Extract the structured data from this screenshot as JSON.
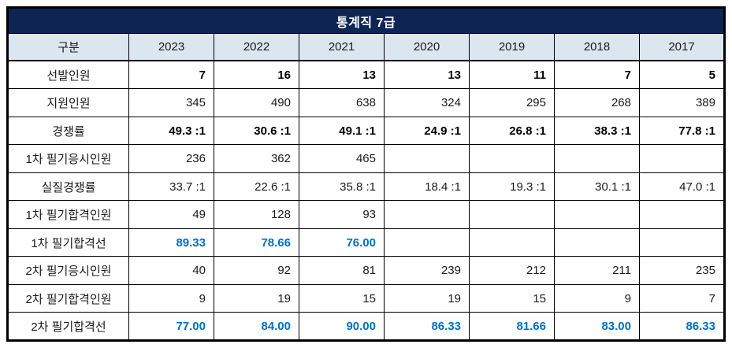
{
  "title": "통계직 7급",
  "columns": [
    "구분",
    "2023",
    "2022",
    "2021",
    "2020",
    "2019",
    "2018",
    "2017"
  ],
  "rows": [
    {
      "label": "선발인원",
      "style": "bold",
      "values": [
        "7",
        "16",
        "13",
        "13",
        "11",
        "7",
        "5"
      ]
    },
    {
      "label": "지원인원",
      "style": "normal",
      "values": [
        "345",
        "490",
        "638",
        "324",
        "295",
        "268",
        "389"
      ]
    },
    {
      "label": "경쟁률",
      "style": "bold",
      "values": [
        "49.3 :1",
        "30.6 :1",
        "49.1 :1",
        "24.9 :1",
        "26.8 :1",
        "38.3 :1",
        "77.8 :1"
      ]
    },
    {
      "label": "1차 필기응시인원",
      "style": "normal",
      "values": [
        "236",
        "362",
        "465",
        "",
        "",
        "",
        ""
      ]
    },
    {
      "label": "실질경쟁률",
      "style": "normal",
      "values": [
        "33.7 :1",
        "22.6 :1",
        "35.8 :1",
        "18.4 :1",
        "19.3 :1",
        "30.1 :1",
        "47.0 :1"
      ]
    },
    {
      "label": "1차 필기합격인원",
      "style": "normal",
      "values": [
        "49",
        "128",
        "93",
        "",
        "",
        "",
        ""
      ]
    },
    {
      "label": "1차 필기합격선",
      "style": "blue-bold",
      "values": [
        "89.33",
        "78.66",
        "76.00",
        "",
        "",
        "",
        ""
      ]
    },
    {
      "label": "2차 필기응시인원",
      "style": "normal",
      "values": [
        "40",
        "92",
        "81",
        "239",
        "212",
        "211",
        "235"
      ]
    },
    {
      "label": "2차 필기합격인원",
      "style": "normal",
      "values": [
        "9",
        "19",
        "15",
        "19",
        "15",
        "9",
        "7"
      ]
    },
    {
      "label": "2차 필기합격선",
      "style": "blue-bold",
      "values": [
        "77.00",
        "84.00",
        "90.00",
        "86.33",
        "81.66",
        "83.00",
        "86.33"
      ]
    }
  ],
  "colors": {
    "title_bg": "#0e2453",
    "title_text": "#ffffff",
    "header_bg": "#dce6f1",
    "score_text": "#0070c0",
    "border": "#000000"
  }
}
